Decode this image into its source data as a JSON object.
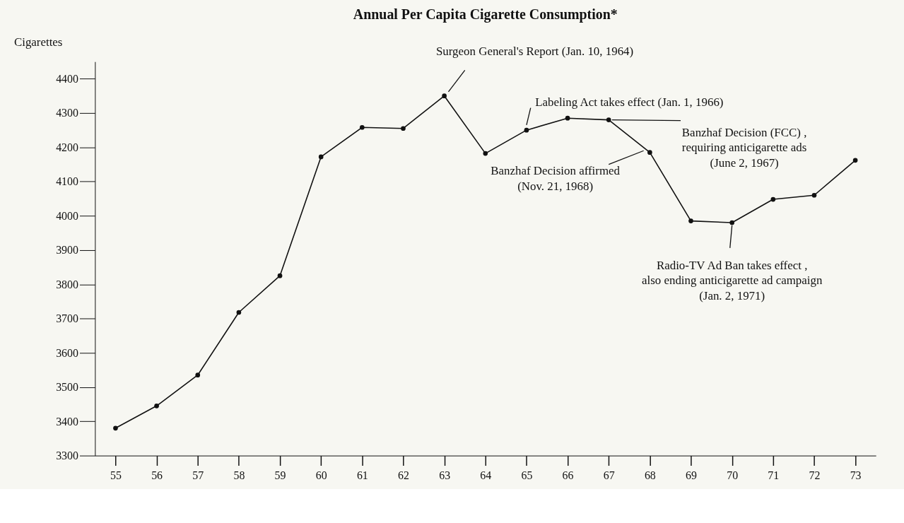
{
  "chart_data": {
    "type": "line",
    "title": "Annual Per Capita Cigarette Consumption*",
    "ylabel": "Cigarettes",
    "categories": [
      "55",
      "56",
      "57",
      "58",
      "59",
      "60",
      "61",
      "62",
      "63",
      "64",
      "65",
      "66",
      "67",
      "68",
      "69",
      "70",
      "71",
      "72",
      "73"
    ],
    "series": [
      {
        "color": "#111111",
        "values": [
          3380,
          3445,
          3535,
          3718,
          3825,
          4172,
          4258,
          4255,
          4350,
          4182,
          4250,
          4285,
          4280,
          4185,
          3985,
          3980,
          4048,
          4060,
          4162
        ]
      }
    ],
    "ylim": [
      3300,
      4450
    ],
    "yticks": [
      3300,
      3400,
      3500,
      3600,
      3700,
      3800,
      3900,
      4000,
      4100,
      4200,
      4300,
      4400
    ],
    "marker": "circle",
    "line_style": "solid",
    "grid": false,
    "annotations": [
      {
        "text": "Surgeon General's Report (Jan. 10, 1964)",
        "x": "63",
        "y": 4350
      },
      {
        "text": "Labeling Act takes effect (Jan. 1, 1966)",
        "x": "65",
        "y": 4250
      },
      {
        "text": "Banzhaf Decision (FCC) ,\nrequiring anticigarette ads\n(June 2, 1967)",
        "x": "67",
        "y": 4280
      },
      {
        "text": "Banzhaf Decision affirmed\n(Nov. 21, 1968)",
        "x": "68",
        "y": 4185
      },
      {
        "text": "Radio-TV Ad Ban takes effect ,\nalso ending anticigarette ad campaign\n(Jan. 2, 1971)",
        "x": "70",
        "y": 3980
      }
    ]
  }
}
